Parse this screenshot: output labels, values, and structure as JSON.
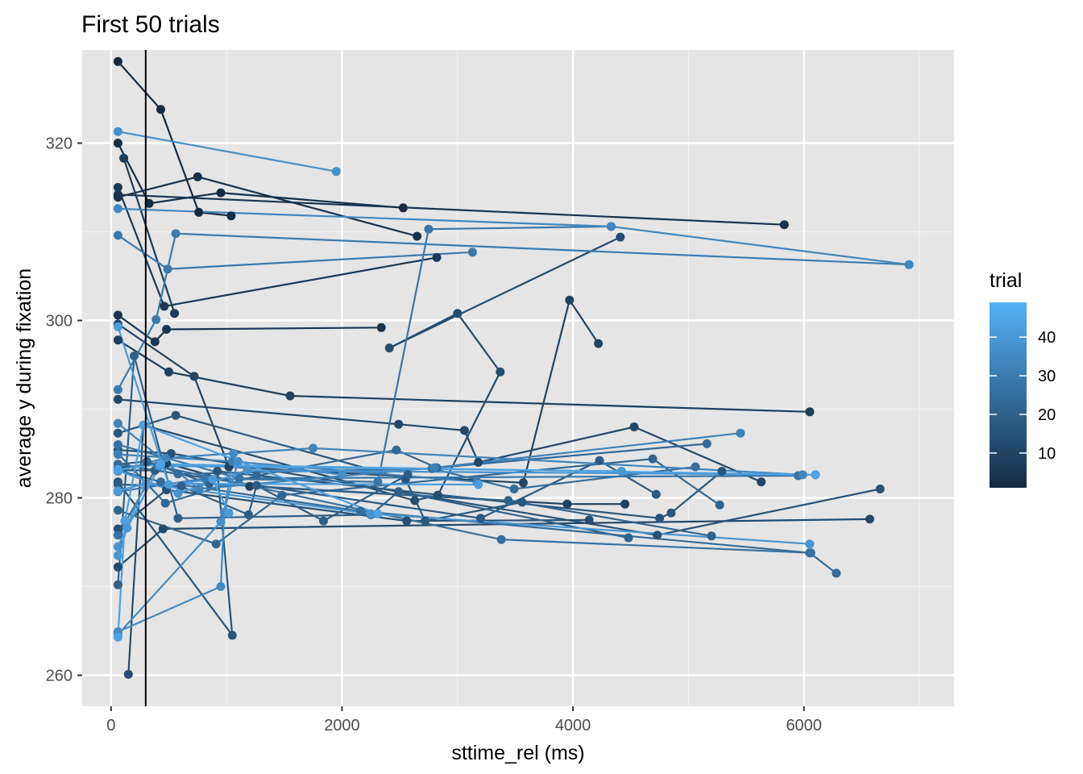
{
  "chart_data": {
    "type": "line",
    "title": "First 50 trials",
    "xlabel": "sttime_rel (ms)",
    "ylabel": "average y during fixation",
    "xlim": [
      -250,
      7300
    ],
    "ylim": [
      256.5,
      330.5
    ],
    "x_ticks": [
      0,
      2000,
      4000,
      6000
    ],
    "x_tick_labels": [
      "0",
      "2000",
      "4000",
      "6000"
    ],
    "x_minor_ticks": [
      1000,
      3000,
      5000,
      7000
    ],
    "y_ticks": [
      260,
      280,
      300,
      320
    ],
    "y_tick_labels": [
      "260",
      "280",
      "300",
      "320"
    ],
    "y_minor_ticks": [
      270,
      290,
      310
    ],
    "grid": true,
    "background": "#e5e5e5",
    "vline": {
      "x": 300,
      "color": "#000000"
    },
    "legend": {
      "title": "trial",
      "position": "right",
      "min": 1,
      "max": 49,
      "ticks": [
        10,
        20,
        30,
        40
      ],
      "tick_labels": [
        "10",
        "20",
        "30",
        "40"
      ],
      "low_color": "#132b43",
      "high_color": "#56b1f7"
    },
    "series": [
      {
        "trial": 1,
        "points": [
          [
            60,
            329.2
          ],
          [
            430,
            323.8
          ],
          [
            760,
            312.2
          ],
          [
            1040,
            311.8
          ]
        ]
      },
      {
        "trial": 2,
        "points": [
          [
            60,
            320.0
          ],
          [
            330,
            313.2
          ],
          [
            950,
            314.4
          ],
          [
            2530,
            312.7
          ]
        ]
      },
      {
        "trial": 3,
        "points": [
          [
            60,
            313.9
          ],
          [
            750,
            316.2
          ],
          [
            2650,
            309.5
          ]
        ]
      },
      {
        "trial": 4,
        "points": [
          [
            60,
            314.2
          ],
          [
            5830,
            310.8
          ]
        ]
      },
      {
        "trial": 5,
        "points": [
          [
            60,
            300.6
          ],
          [
            380,
            297.6
          ],
          [
            480,
            299.0
          ],
          [
            2340,
            299.2
          ]
        ]
      },
      {
        "trial": 6,
        "points": [
          [
            60,
            315.0
          ],
          [
            460,
            301.6
          ],
          [
            2820,
            307.1
          ]
        ]
      },
      {
        "trial": 7,
        "points": [
          [
            110,
            318.3
          ],
          [
            550,
            300.8
          ]
        ]
      },
      {
        "trial": 8,
        "points": [
          [
            60,
            297.8
          ],
          [
            500,
            294.2
          ],
          [
            1550,
            291.5
          ],
          [
            6050,
            289.7
          ]
        ]
      },
      {
        "trial": 9,
        "points": [
          [
            60,
            283.4
          ],
          [
            480,
            283.9
          ],
          [
            1200,
            281.3
          ],
          [
            3950,
            279.3
          ],
          [
            4450,
            279.3
          ]
        ]
      },
      {
        "trial": 10,
        "points": [
          [
            60,
            299.6
          ],
          [
            720,
            293.7
          ],
          [
            1020,
            283.5
          ],
          [
            3570,
            281.7
          ],
          [
            3970,
            302.3
          ],
          [
            4220,
            297.4
          ]
        ]
      },
      {
        "trial": 11,
        "points": [
          [
            60,
            291.1
          ],
          [
            2490,
            288.3
          ],
          [
            3060,
            287.6
          ],
          [
            3180,
            284.0
          ],
          [
            4530,
            288.0
          ],
          [
            5630,
            281.8
          ]
        ]
      },
      {
        "trial": 12,
        "points": [
          [
            60,
            272.2
          ],
          [
            450,
            276.5
          ],
          [
            6570,
            277.6
          ]
        ]
      },
      {
        "trial": 13,
        "points": [
          [
            150,
            260.1
          ],
          [
            280,
            288.2
          ],
          [
            2630,
            279.7
          ],
          [
            2830,
            280.3
          ],
          [
            3370,
            294.2
          ],
          [
            3000,
            300.8
          ],
          [
            2410,
            296.9
          ],
          [
            4410,
            309.4
          ]
        ]
      },
      {
        "trial": 14,
        "points": [
          [
            60,
            276.5
          ],
          [
            480,
            280.9
          ],
          [
            2560,
            277.4
          ],
          [
            4140,
            277.5
          ]
        ]
      },
      {
        "trial": 15,
        "points": [
          [
            60,
            285.4
          ],
          [
            520,
            285.0
          ],
          [
            4730,
            275.8
          ],
          [
            6660,
            281.0
          ]
        ]
      },
      {
        "trial": 16,
        "points": [
          [
            60,
            281.8
          ],
          [
            1050,
            264.5
          ],
          [
            920,
            283.0
          ],
          [
            4750,
            277.7
          ],
          [
            4850,
            278.3
          ],
          [
            5290,
            283.0
          ]
        ]
      },
      {
        "trial": 17,
        "points": [
          [
            60,
            287.3
          ],
          [
            560,
            289.3
          ],
          [
            2550,
            282.1
          ],
          [
            2720,
            277.4
          ],
          [
            3560,
            279.5
          ]
        ]
      },
      {
        "trial": 18,
        "points": [
          [
            60,
            283.1
          ],
          [
            380,
            283.1
          ],
          [
            3200,
            277.7
          ],
          [
            4230,
            284.2
          ],
          [
            4720,
            280.4
          ]
        ]
      },
      {
        "trial": 19,
        "points": [
          [
            60,
            281.5
          ],
          [
            610,
            281.3
          ],
          [
            1190,
            278.1
          ],
          [
            1260,
            281.4
          ],
          [
            1840,
            277.4
          ],
          [
            2570,
            282.6
          ]
        ]
      },
      {
        "trial": 20,
        "points": [
          [
            60,
            270.2
          ],
          [
            200,
            296.0
          ],
          [
            580,
            277.7
          ],
          [
            2250,
            278.1
          ],
          [
            2490,
            280.7
          ],
          [
            4480,
            275.5
          ]
        ]
      },
      {
        "trial": 21,
        "points": [
          [
            60,
            283.8
          ],
          [
            310,
            284.1
          ],
          [
            850,
            281.6
          ],
          [
            3440,
            279.7
          ],
          [
            5200,
            275.7
          ]
        ]
      },
      {
        "trial": 22,
        "points": [
          [
            60,
            278.6
          ],
          [
            910,
            274.8
          ],
          [
            1480,
            280.3
          ],
          [
            4690,
            284.4
          ],
          [
            5270,
            279.2
          ]
        ]
      },
      {
        "trial": 23,
        "points": [
          [
            60,
            285.0
          ],
          [
            470,
            279.4
          ],
          [
            1260,
            282.5
          ],
          [
            2470,
            285.4
          ],
          [
            2820,
            283.4
          ],
          [
            5160,
            286.1
          ]
        ]
      },
      {
        "trial": 24,
        "points": [
          [
            60,
            283.1
          ],
          [
            430,
            281.8
          ],
          [
            2160,
            278.5
          ],
          [
            6050,
            273.8
          ],
          [
            6280,
            271.5
          ]
        ]
      },
      {
        "trial": 25,
        "points": [
          [
            60,
            283.8
          ],
          [
            580,
            282.7
          ],
          [
            2780,
            283.3
          ],
          [
            3490,
            281.0
          ],
          [
            5060,
            283.5
          ]
        ]
      },
      {
        "trial": 26,
        "points": [
          [
            60,
            275.8
          ],
          [
            400,
            283.6
          ],
          [
            3380,
            275.3
          ],
          [
            6060,
            273.8
          ]
        ]
      },
      {
        "trial": 27,
        "points": [
          [
            60,
            286.0
          ],
          [
            1110,
            282.2
          ],
          [
            5950,
            282.5
          ]
        ]
      },
      {
        "trial": 28,
        "points": [
          [
            60,
            280.7
          ],
          [
            820,
            282.2
          ],
          [
            2310,
            281.8
          ],
          [
            2750,
            310.3
          ],
          [
            4330,
            310.6
          ]
        ]
      },
      {
        "trial": 29,
        "points": [
          [
            60,
            309.6
          ],
          [
            490,
            305.8
          ],
          [
            3130,
            307.7
          ]
        ]
      },
      {
        "trial": 30,
        "points": [
          [
            60,
            292.2
          ],
          [
            390,
            300.1
          ],
          [
            560,
            309.8
          ],
          [
            6910,
            306.3
          ]
        ]
      },
      {
        "trial": 31,
        "points": [
          [
            60,
            284.9
          ],
          [
            1050,
            284.1
          ],
          [
            3170,
            281.8
          ]
        ]
      },
      {
        "trial": 32,
        "points": [
          [
            60,
            288.4
          ],
          [
            760,
            281.0
          ],
          [
            2800,
            283.4
          ],
          [
            5450,
            287.3
          ]
        ]
      },
      {
        "trial": 33,
        "points": [
          [
            60,
            283.0
          ],
          [
            470,
            284.5
          ],
          [
            1750,
            285.6
          ],
          [
            5990,
            282.6
          ]
        ]
      },
      {
        "trial": 34,
        "points": [
          [
            60,
            312.6
          ],
          [
            4330,
            310.6
          ],
          [
            6910,
            306.3
          ]
        ]
      },
      {
        "trial": 35,
        "points": [
          [
            60,
            264.9
          ],
          [
            950,
            270.0
          ],
          [
            980,
            278.4
          ],
          [
            1060,
            285.0
          ]
        ]
      },
      {
        "trial": 36,
        "points": [
          [
            60,
            264.6
          ],
          [
            950,
            277.3
          ],
          [
            1100,
            284.1
          ],
          [
            2000,
            282.6
          ]
        ]
      },
      {
        "trial": 37,
        "points": [
          [
            60,
            321.3
          ],
          [
            1950,
            316.8
          ]
        ]
      },
      {
        "trial": 38,
        "points": [
          [
            60,
            283.1
          ],
          [
            580,
            280.5
          ],
          [
            1180,
            283.1
          ],
          [
            6100,
            282.6
          ]
        ]
      },
      {
        "trial": 39,
        "points": [
          [
            60,
            274.5
          ],
          [
            300,
            281.6
          ],
          [
            2250,
            278.2
          ],
          [
            6050,
            274.8
          ]
        ]
      },
      {
        "trial": 40,
        "points": [
          [
            60,
            273.5
          ],
          [
            140,
            276.6
          ],
          [
            420,
            283.6
          ],
          [
            4420,
            283.0
          ]
        ]
      },
      {
        "trial": 41,
        "points": [
          [
            60,
            299.3
          ],
          [
            500,
            281.5
          ],
          [
            880,
            282.1
          ],
          [
            1020,
            278.3
          ]
        ]
      },
      {
        "trial": 42,
        "points": [
          [
            60,
            280.8
          ],
          [
            300,
            281.6
          ],
          [
            3180,
            281.5
          ]
        ]
      },
      {
        "trial": 43,
        "points": [
          [
            60,
            264.3
          ],
          [
            120,
            277.4
          ],
          [
            280,
            288.2
          ],
          [
            2310,
            278.2
          ]
        ]
      },
      {
        "trial": 44,
        "points": [
          [
            60,
            283.2
          ],
          [
            430,
            283.8
          ],
          [
            6100,
            282.6
          ]
        ]
      }
    ]
  }
}
